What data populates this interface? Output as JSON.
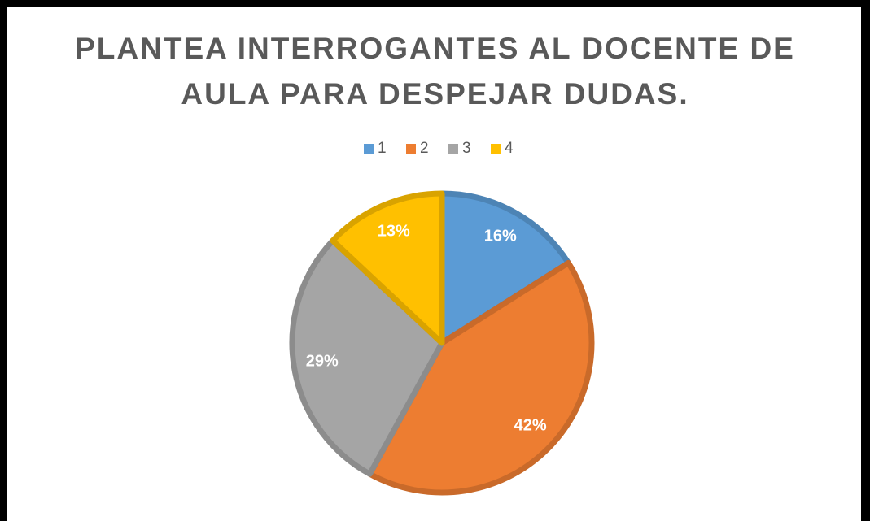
{
  "chart_data": {
    "type": "pie",
    "title": "PLANTEA INTERROGANTES AL DOCENTE DE\nAULA PARA DESPEJAR DUDAS.",
    "categories": [
      "1",
      "2",
      "3",
      "4"
    ],
    "values": [
      16,
      42,
      29,
      13
    ],
    "value_labels": [
      "16%",
      "42%",
      "29%",
      "13%"
    ],
    "colors": [
      "#5b9bd5",
      "#ed7d31",
      "#a5a5a5",
      "#ffc000"
    ],
    "legend": "top"
  }
}
